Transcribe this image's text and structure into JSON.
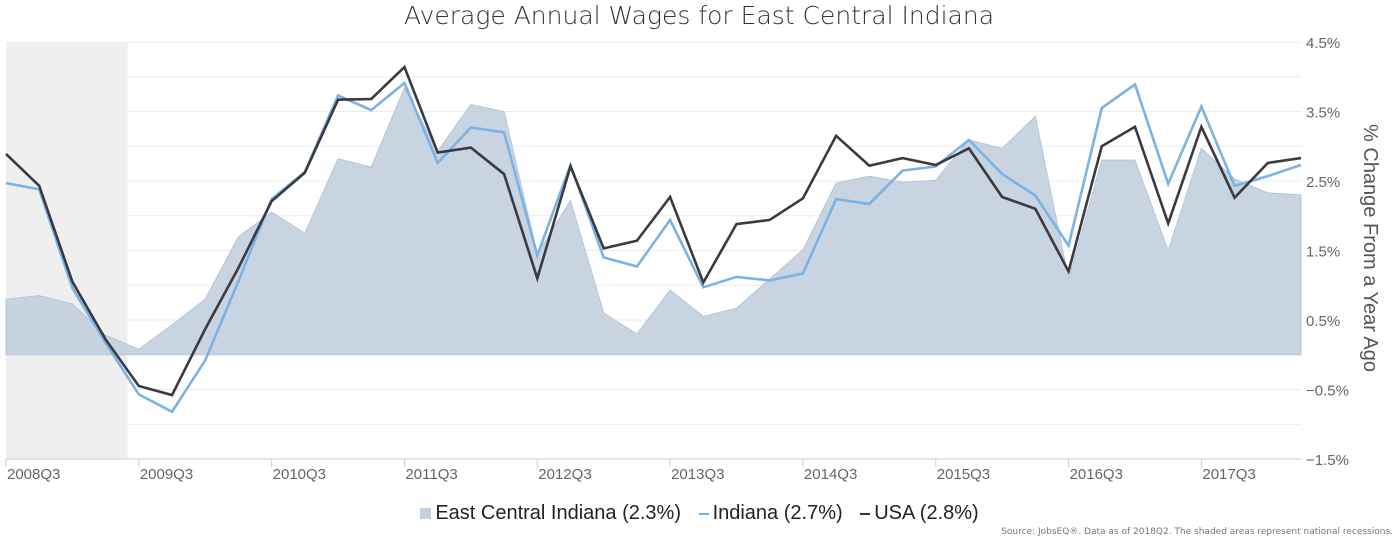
{
  "chart_data": {
    "type": "line",
    "title": "Average Annual Wages for East Central Indiana",
    "ylabel": "% Change From a Year Ago",
    "ylim": [
      -1.5,
      4.5
    ],
    "y_axis_side": "right",
    "y_ticks": [
      "4.5%",
      "3.5%",
      "2.5%",
      "1.5%",
      "0.5%",
      "−0.5%",
      "−1.5%"
    ],
    "y_tick_values": [
      4.5,
      3.5,
      2.5,
      1.5,
      0.5,
      -0.5,
      -1.5
    ],
    "x": [
      "2008Q3",
      "2008Q4",
      "2009Q1",
      "2009Q2",
      "2009Q3",
      "2009Q4",
      "2010Q1",
      "2010Q2",
      "2010Q3",
      "2010Q4",
      "2011Q1",
      "2011Q2",
      "2011Q3",
      "2011Q4",
      "2012Q1",
      "2012Q2",
      "2012Q3",
      "2012Q4",
      "2013Q1",
      "2013Q2",
      "2013Q3",
      "2013Q4",
      "2014Q1",
      "2014Q2",
      "2014Q3",
      "2014Q4",
      "2015Q1",
      "2015Q2",
      "2015Q3",
      "2015Q4",
      "2016Q1",
      "2016Q2",
      "2016Q3",
      "2016Q4",
      "2017Q1",
      "2017Q2",
      "2017Q3",
      "2017Q4",
      "2018Q1",
      "2018Q2"
    ],
    "x_tick_labels": [
      "2008Q3",
      "2009Q3",
      "2010Q3",
      "2011Q3",
      "2012Q3",
      "2013Q3",
      "2014Q3",
      "2015Q3",
      "2016Q3",
      "2017Q3"
    ],
    "recession": {
      "start": "2008Q3",
      "end": "2009Q2"
    },
    "grid": true,
    "legend_position": "bottom",
    "series": [
      {
        "name": "East Central Indiana (2.3%)",
        "kind": "area",
        "color": "#c3cfdf",
        "values": [
          0.8,
          0.85,
          0.73,
          0.28,
          0.08,
          0.43,
          0.8,
          1.7,
          2.05,
          1.75,
          2.82,
          2.7,
          3.84,
          2.93,
          3.6,
          3.5,
          1.45,
          2.22,
          0.6,
          0.3,
          0.93,
          0.55,
          0.67,
          1.09,
          1.51,
          2.47,
          2.57,
          2.48,
          2.51,
          3.09,
          2.97,
          3.43,
          1.09,
          2.8,
          2.8,
          1.5,
          2.97,
          2.53,
          2.33,
          2.3
        ]
      },
      {
        "name": "Indiana (2.7%)",
        "kind": "line",
        "color": "#7bb3e2",
        "values": [
          2.47,
          2.38,
          0.96,
          0.17,
          -0.57,
          -0.82,
          -0.08,
          1.06,
          2.24,
          2.63,
          3.73,
          3.52,
          3.91,
          2.76,
          3.27,
          3.2,
          1.43,
          2.73,
          1.4,
          1.27,
          1.94,
          0.97,
          1.12,
          1.07,
          1.17,
          2.24,
          2.17,
          2.65,
          2.71,
          3.09,
          2.6,
          2.29,
          1.57,
          3.55,
          3.89,
          2.46,
          3.57,
          2.43,
          2.57,
          2.73
        ]
      },
      {
        "name": "USA (2.8%)",
        "kind": "line",
        "color": "#3a3a40",
        "values": [
          2.89,
          2.43,
          1.05,
          0.22,
          -0.45,
          -0.58,
          0.37,
          1.25,
          2.21,
          2.62,
          3.67,
          3.68,
          4.14,
          2.91,
          2.98,
          2.6,
          1.1,
          2.71,
          1.53,
          1.64,
          2.27,
          1.04,
          1.88,
          1.94,
          2.25,
          3.15,
          2.72,
          2.83,
          2.73,
          2.97,
          2.27,
          2.1,
          1.2,
          3.0,
          3.28,
          1.89,
          3.28,
          2.26,
          2.76,
          2.83
        ]
      }
    ]
  },
  "footer": {
    "source": "Source: JobsEQ®. Data as of 2018Q2. The shaded areas represent national recessions."
  }
}
